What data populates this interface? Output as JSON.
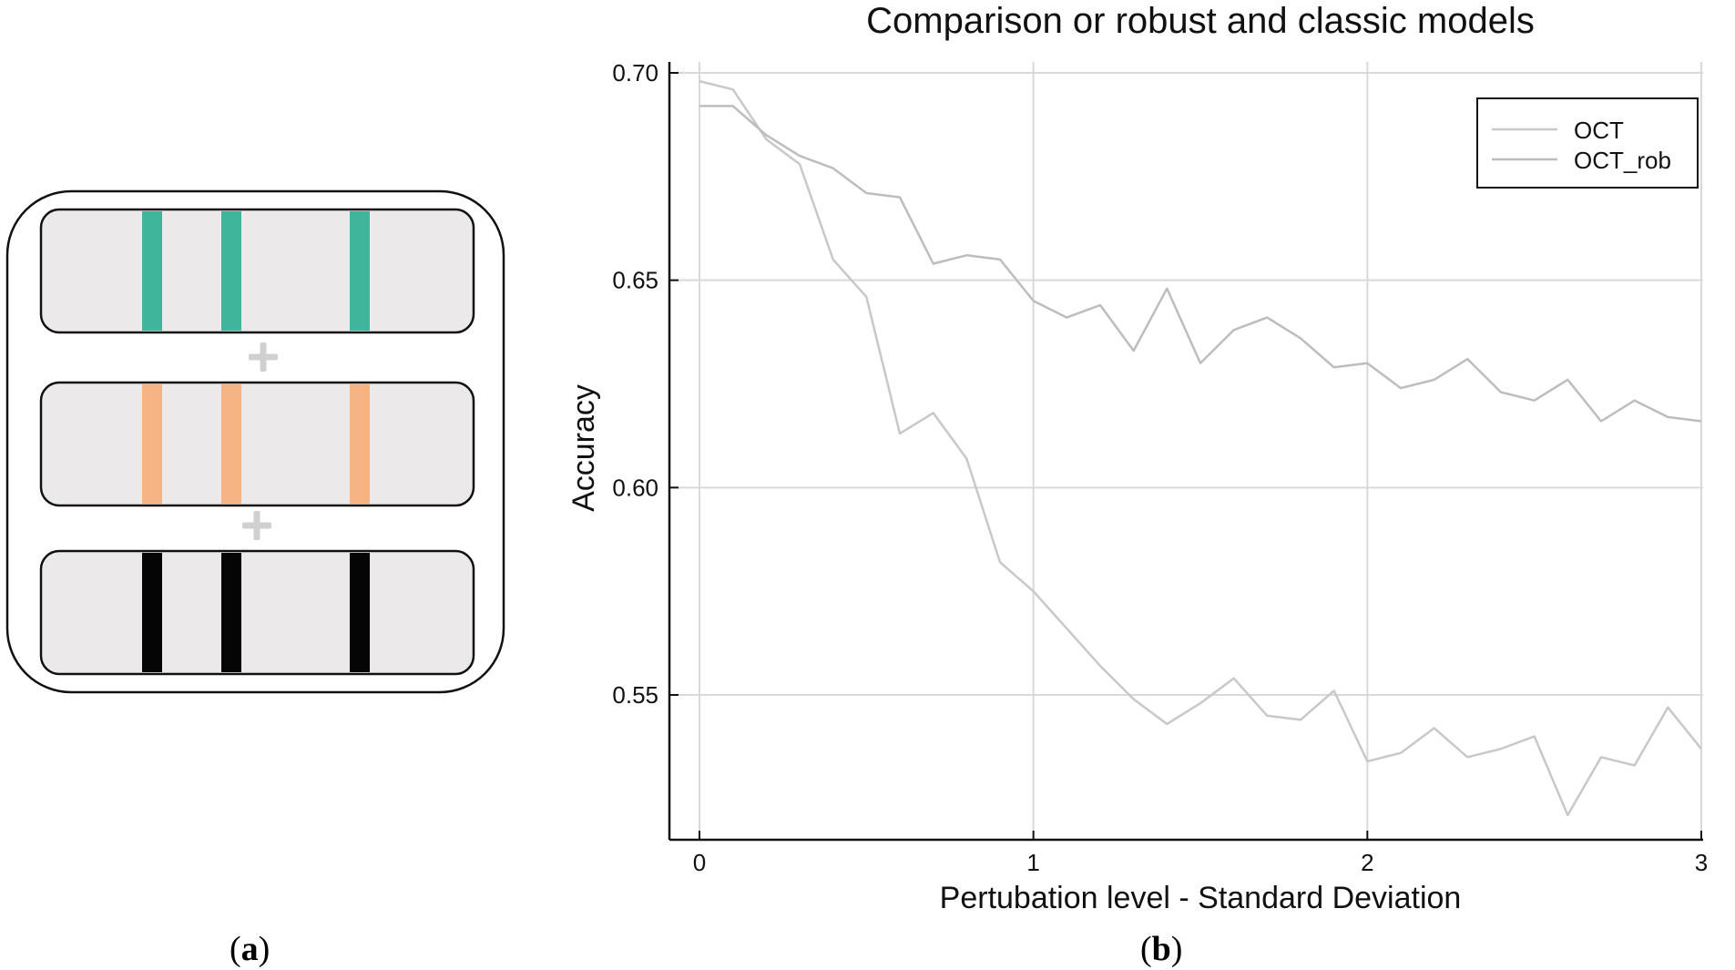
{
  "panel_a": {
    "label": "a",
    "colors": {
      "row1": "#3fb59b",
      "row2": "#f6b384",
      "row3": "#050505",
      "tile_fill": "#ece9ea",
      "plus": "#d0d0d0"
    }
  },
  "panel_b": {
    "label": "b"
  },
  "chart_data": {
    "type": "line",
    "title": "Comparison or robust and classic models",
    "xlabel": "Pertubation level - Standard Deviation",
    "ylabel": "Accuracy",
    "xlim": [
      0,
      3
    ],
    "ylim": [
      0.515,
      0.7
    ],
    "xticks": [
      0,
      1,
      2,
      3
    ],
    "yticks": [
      0.55,
      0.6,
      0.65,
      0.7
    ],
    "ytick_labels": [
      "0.55",
      "0.60",
      "0.65",
      "0.70"
    ],
    "xtick_labels": [
      "0",
      "1",
      "2",
      "3"
    ],
    "grid": true,
    "legend_position": "top-right",
    "x": [
      0,
      0.1,
      0.2,
      0.3,
      0.4,
      0.5,
      0.6,
      0.7,
      0.8,
      0.9,
      1.0,
      1.1,
      1.2,
      1.3,
      1.4,
      1.5,
      1.6,
      1.7,
      1.8,
      1.9,
      2.0,
      2.1,
      2.2,
      2.3,
      2.4,
      2.5,
      2.6,
      2.7,
      2.8,
      2.9,
      3.0
    ],
    "series": [
      {
        "name": "OCT",
        "color": "#c8c8c8",
        "values": [
          0.698,
          0.696,
          0.684,
          0.678,
          0.655,
          0.646,
          0.613,
          0.618,
          0.607,
          0.582,
          0.575,
          0.566,
          0.557,
          0.549,
          0.543,
          0.548,
          0.554,
          0.545,
          0.544,
          0.551,
          0.534,
          0.536,
          0.542,
          0.535,
          0.537,
          0.54,
          0.521,
          0.535,
          0.533,
          0.547,
          0.537
        ]
      },
      {
        "name": "OCT_rob",
        "color": "#bdbdbd",
        "values": [
          0.692,
          0.692,
          0.685,
          0.68,
          0.677,
          0.671,
          0.67,
          0.654,
          0.656,
          0.655,
          0.645,
          0.641,
          0.644,
          0.633,
          0.648,
          0.63,
          0.638,
          0.641,
          0.636,
          0.629,
          0.63,
          0.624,
          0.626,
          0.631,
          0.623,
          0.621,
          0.626,
          0.616,
          0.621,
          0.617,
          0.616
        ]
      }
    ]
  }
}
